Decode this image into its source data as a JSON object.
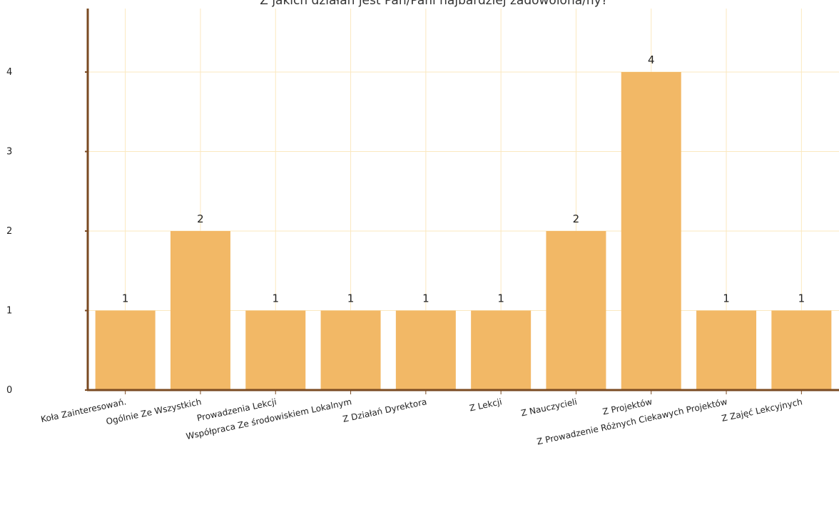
{
  "chart_data": {
    "type": "bar",
    "title": "Z jakich działań jest Pan/Pani najbardziej zadowolona/ny?",
    "categories": [
      "Koła Zainteresowań.",
      "Ogólnie Ze Wszystkich",
      "Prowadzenia Lekcji",
      "Współpraca Ze środowiskiem Lokalnym",
      "Z Działań Dyrektora",
      "Z Lekcji",
      "Z Nauczycieli",
      "Z Projektów",
      "Z Prowadzenie Różnych Ciekawych Projektów",
      "Z Zajęć Lekcyjnych"
    ],
    "values": [
      1,
      2,
      1,
      1,
      1,
      1,
      2,
      4,
      1,
      1
    ],
    "data_labels": [
      "1",
      "2",
      "1",
      "1",
      "1",
      "1",
      "2",
      "4",
      "1",
      "1"
    ],
    "yticks": [
      "0",
      "1",
      "2",
      "3",
      "4"
    ],
    "ylim": [
      0,
      4.9
    ],
    "xlabel": "",
    "ylabel": "",
    "grid": true,
    "colors": {
      "bar": "#f2b866",
      "axis": "#7a4a22",
      "grid": "#fbe8bf",
      "text": "#222222"
    }
  }
}
